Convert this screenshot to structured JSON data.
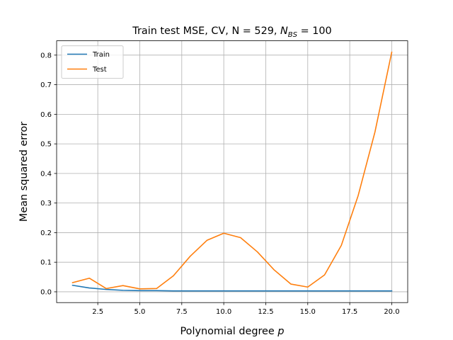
{
  "chart_data": {
    "type": "line",
    "title_prefix": "Train test MSE, CV, N = 529, ",
    "title_sym": "N",
    "title_sub": "BS",
    "title_suffix": " = 100",
    "xlabel": "Polynomial degree ",
    "xlabel_sym": "p",
    "ylabel": "Mean squared error",
    "xlim": [
      0.05,
      20.95
    ],
    "ylim": [
      -0.0365,
      0.8484
    ],
    "xticks": [
      2.5,
      5.0,
      7.5,
      10.0,
      12.5,
      15.0,
      17.5,
      20.0
    ],
    "xtick_labels": [
      "2.5",
      "5.0",
      "7.5",
      "10.0",
      "12.5",
      "15.0",
      "17.5",
      "20.0"
    ],
    "yticks": [
      0.0,
      0.1,
      0.2,
      0.3,
      0.4,
      0.5,
      0.6,
      0.7,
      0.8
    ],
    "ytick_labels": [
      "0.0",
      "0.1",
      "0.2",
      "0.3",
      "0.4",
      "0.5",
      "0.6",
      "0.7",
      "0.8"
    ],
    "grid": true,
    "legend_position": "top-left",
    "x": [
      1,
      2,
      3,
      4,
      5,
      6,
      7,
      8,
      9,
      10,
      11,
      12,
      13,
      14,
      15,
      16,
      17,
      18,
      19,
      20
    ],
    "series": [
      {
        "name": "Train",
        "color": "#1f77b4",
        "values": [
          0.022,
          0.013,
          0.008,
          0.005,
          0.004,
          0.004,
          0.003,
          0.003,
          0.003,
          0.003,
          0.003,
          0.003,
          0.003,
          0.003,
          0.003,
          0.003,
          0.003,
          0.003,
          0.003,
          0.003
        ]
      },
      {
        "name": "Test",
        "color": "#ff7f0e",
        "values": [
          0.031,
          0.046,
          0.011,
          0.021,
          0.01,
          0.011,
          0.054,
          0.12,
          0.174,
          0.198,
          0.183,
          0.135,
          0.074,
          0.026,
          0.016,
          0.057,
          0.157,
          0.325,
          0.54,
          0.81
        ]
      }
    ]
  }
}
